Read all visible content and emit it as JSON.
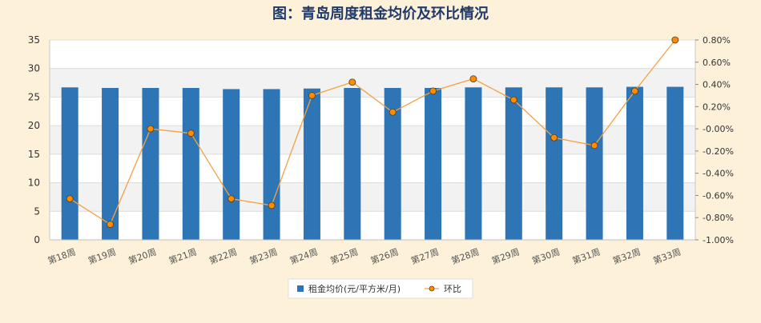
{
  "chart_data": {
    "type": "bar",
    "title": "图：青岛周度租金均价及环比情况",
    "categories": [
      "第18周",
      "第19周",
      "第20周",
      "第21周",
      "第22周",
      "第23周",
      "第24周",
      "第25周",
      "第26周",
      "第27周",
      "第28周",
      "第29周",
      "第30周",
      "第31周",
      "第32周",
      "第33周"
    ],
    "series": [
      {
        "name": "租金均价(元/平方米/月)",
        "type": "bar",
        "axis": "left",
        "values": [
          26.7,
          26.6,
          26.6,
          26.6,
          26.4,
          26.4,
          26.5,
          26.6,
          26.6,
          26.6,
          26.7,
          26.7,
          26.7,
          26.7,
          26.8,
          26.8
        ]
      },
      {
        "name": "环比",
        "type": "line",
        "axis": "right",
        "values": [
          -0.63,
          -0.86,
          0.0,
          -0.04,
          -0.63,
          -0.69,
          0.3,
          0.42,
          0.15,
          0.34,
          0.45,
          0.26,
          -0.08,
          -0.15,
          0.34,
          0.8
        ]
      }
    ],
    "y_left": {
      "ylim": [
        0,
        35
      ],
      "ticks": [
        "0",
        "5",
        "10",
        "15",
        "20",
        "25",
        "30",
        "35"
      ]
    },
    "y_right": {
      "ylim": [
        -1.0,
        0.8
      ],
      "ticks": [
        "-1.00%",
        "-0.80%",
        "-0.60%",
        "-0.40%",
        "-0.20%",
        "-0.00%",
        "0.20%",
        "0.40%",
        "0.60%",
        "0.80%"
      ]
    },
    "grid": true,
    "legend_position": "bottom",
    "colors": {
      "bar": "#2e75b6",
      "line": "#f5a041",
      "marker_fill": "#ff8c00",
      "marker_edge": "#5a3a10",
      "title": "#1f3a6b"
    }
  }
}
